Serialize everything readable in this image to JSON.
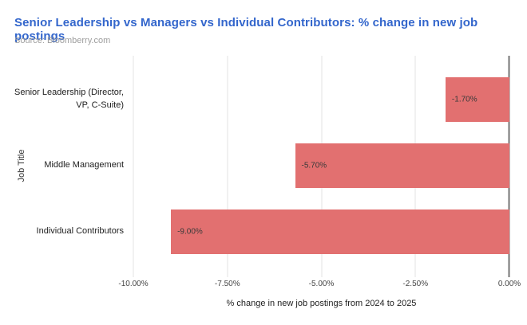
{
  "header": {
    "title": "Senior Leadership vs Managers vs Individual Contributors: % change in new job postings",
    "source": "Source: Bloomberry.com",
    "title_color": "#3366cc"
  },
  "chart_data": {
    "type": "bar",
    "orientation": "horizontal",
    "title": "Senior Leadership vs Managers vs Individual Contributors: % change in new job postings",
    "source": "Source: Bloomberry.com",
    "categories": [
      "Senior Leadership (Director, VP, C-Suite)",
      "Middle Management",
      "Individual Contributors"
    ],
    "category_lines": [
      [
        "Senior Leadership (Director,",
        "VP, C-Suite)"
      ],
      [
        "Middle Management"
      ],
      [
        "Individual Contributors"
      ]
    ],
    "values": [
      -1.7,
      -5.7,
      -9.0
    ],
    "bar_labels": [
      "-1.70%",
      "-5.70%",
      "-9.00%"
    ],
    "xlabel": "% change in new job postings from 2024 to 2025",
    "ylabel": "Job Title",
    "xlim": [
      -10,
      0
    ],
    "x_ticks": [
      {
        "value": -10,
        "label": "-10.00%"
      },
      {
        "value": -7.5,
        "label": "-7.50%"
      },
      {
        "value": -5,
        "label": "-5.00%"
      },
      {
        "value": -2.5,
        "label": "-2.50%"
      },
      {
        "value": 0,
        "label": "0.00%"
      }
    ],
    "bar_color": "#e27070",
    "gridline_color": "#e3e3e3",
    "zero_axis_color": "#757575",
    "grid": true,
    "legend": "none"
  }
}
